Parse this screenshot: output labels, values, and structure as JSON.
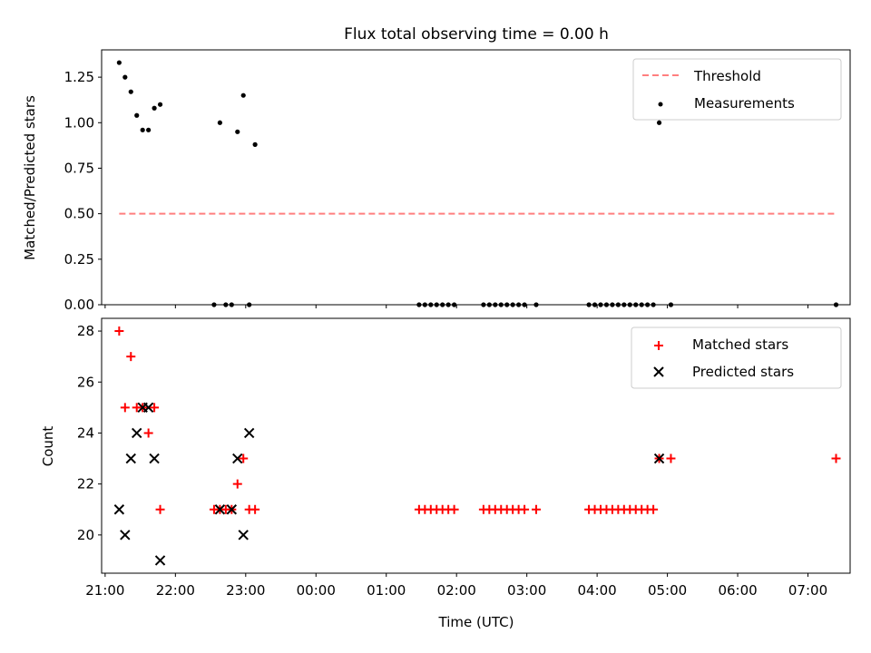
{
  "title": "Flux total observing time = 0.00 h",
  "xlabel": "Time (UTC)",
  "x_ticks": [
    "21:00",
    "22:00",
    "23:00",
    "00:00",
    "01:00",
    "02:00",
    "03:00",
    "04:00",
    "05:00",
    "06:00",
    "07:00"
  ],
  "colors": {
    "threshold": "#ff7f7f",
    "measurement": "#000000",
    "matched": "#ff0000",
    "predicted": "#000000"
  },
  "chart_data": [
    {
      "type": "scatter",
      "ylabel": "Matched/Predicted stars",
      "ylim": [
        0,
        1.4
      ],
      "xlim": [
        "20:57",
        "07:36"
      ],
      "y_ticks": [
        "0.00",
        "0.25",
        "0.50",
        "0.75",
        "1.00",
        "1.25"
      ],
      "legend": {
        "placement": "upper right",
        "entries": [
          "Threshold",
          "Measurements"
        ]
      },
      "threshold": {
        "name": "Threshold",
        "y": 0.5,
        "x_range": [
          "21:12",
          "07:24"
        ],
        "style": "dashed"
      },
      "series": [
        {
          "name": "Measurements",
          "x": [
            "21:12",
            "21:17",
            "21:22",
            "21:27",
            "21:32",
            "21:37",
            "21:42",
            "21:47",
            "22:33",
            "22:38",
            "22:43",
            "22:48",
            "22:53",
            "22:58",
            "23:03",
            "23:08",
            "01:28",
            "01:33",
            "01:38",
            "01:43",
            "01:48",
            "01:53",
            "01:58",
            "02:23",
            "02:28",
            "02:33",
            "02:38",
            "02:43",
            "02:48",
            "02:53",
            "02:58",
            "03:08",
            "03:53",
            "03:58",
            "04:03",
            "04:08",
            "04:13",
            "04:18",
            "04:23",
            "04:28",
            "04:33",
            "04:38",
            "04:43",
            "04:48",
            "04:53",
            "05:03",
            "07:24"
          ],
          "y": [
            1.33,
            1.25,
            1.17,
            1.04,
            0.96,
            0.96,
            1.08,
            1.1,
            0.0,
            1.0,
            0.0,
            0.0,
            0.95,
            1.15,
            0.0,
            0.88,
            0.0,
            0.0,
            0.0,
            0.0,
            0.0,
            0.0,
            0.0,
            0.0,
            0.0,
            0.0,
            0.0,
            0.0,
            0.0,
            0.0,
            0.0,
            0.0,
            0.0,
            0.0,
            0.0,
            0.0,
            0.0,
            0.0,
            0.0,
            0.0,
            0.0,
            0.0,
            0.0,
            0.0,
            1.0,
            0.0,
            0.0
          ]
        }
      ]
    },
    {
      "type": "scatter",
      "ylabel": "Count",
      "ylim": [
        18.5,
        28.5
      ],
      "y_ticks": [
        "20",
        "22",
        "24",
        "26",
        "28"
      ],
      "legend": {
        "placement": "upper right",
        "entries": [
          "Matched stars",
          "Predicted stars"
        ]
      },
      "series": [
        {
          "name": "Matched stars",
          "marker": "plus",
          "x": [
            "21:12",
            "21:17",
            "21:22",
            "21:27",
            "21:32",
            "21:37",
            "21:42",
            "21:47",
            "22:33",
            "22:38",
            "22:43",
            "22:48",
            "22:53",
            "22:58",
            "23:03",
            "23:08",
            "01:28",
            "01:33",
            "01:38",
            "01:43",
            "01:48",
            "01:53",
            "01:58",
            "02:23",
            "02:28",
            "02:33",
            "02:38",
            "02:43",
            "02:48",
            "02:53",
            "02:58",
            "03:08",
            "03:53",
            "03:58",
            "04:03",
            "04:08",
            "04:13",
            "04:18",
            "04:23",
            "04:28",
            "04:33",
            "04:38",
            "04:43",
            "04:48",
            "04:53",
            "05:03",
            "07:24"
          ],
          "y": [
            28,
            25,
            27,
            25,
            25,
            24,
            25,
            21,
            21,
            21,
            21,
            21,
            22,
            23,
            21,
            21,
            21,
            21,
            21,
            21,
            21,
            21,
            21,
            21,
            21,
            21,
            21,
            21,
            21,
            21,
            21,
            21,
            21,
            21,
            21,
            21,
            21,
            21,
            21,
            21,
            21,
            21,
            21,
            21,
            23,
            23,
            23
          ]
        },
        {
          "name": "Predicted stars",
          "marker": "x",
          "x": [
            "21:12",
            "21:17",
            "21:22",
            "21:27",
            "21:32",
            "21:37",
            "21:42",
            "21:47",
            "22:38",
            "22:48",
            "22:53",
            "22:58",
            "23:03",
            "04:53"
          ],
          "y": [
            21,
            20,
            23,
            24,
            25,
            25,
            23,
            19,
            21,
            21,
            23,
            20,
            24,
            23
          ]
        }
      ]
    }
  ]
}
